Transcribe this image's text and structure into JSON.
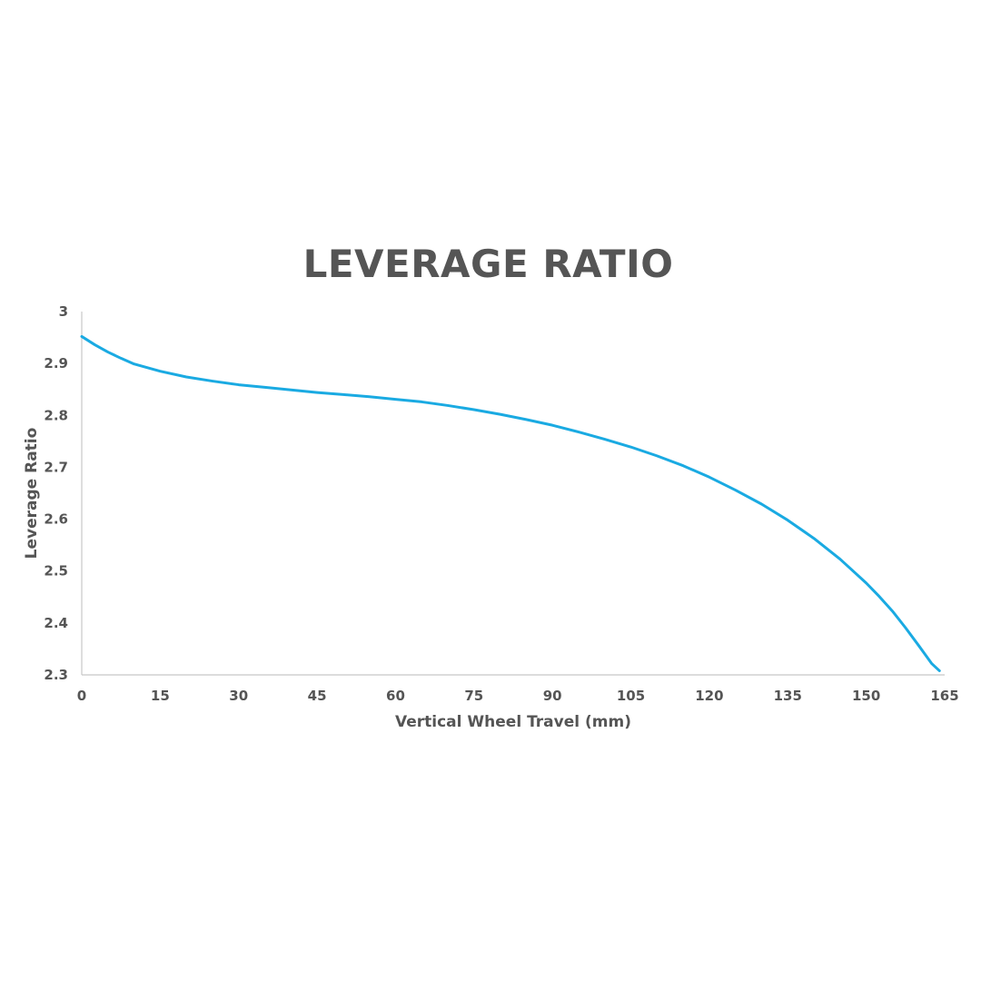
{
  "chart_data": {
    "type": "line",
    "title": "LEVERAGE RATIO",
    "xlabel": "Vertical Wheel Travel (mm)",
    "ylabel": "Leverage Ratio",
    "xlim": [
      0,
      165
    ],
    "ylim": [
      2.3,
      3.0
    ],
    "x_ticks": [
      "0",
      "15",
      "30",
      "45",
      "60",
      "75",
      "90",
      "105",
      "120",
      "135",
      "150",
      "165"
    ],
    "x_tick_values": [
      0,
      15,
      30,
      45,
      60,
      75,
      90,
      105,
      120,
      135,
      150,
      165
    ],
    "y_ticks": [
      "2.3",
      "2.4",
      "2.5",
      "2.6",
      "2.7",
      "2.8",
      "2.9",
      "3"
    ],
    "y_tick_values": [
      2.3,
      2.4,
      2.5,
      2.6,
      2.7,
      2.8,
      2.9,
      3.0
    ],
    "grid": false,
    "legend": "none",
    "line_color": "#1aaae2",
    "text_color": "#555555",
    "axis_color": "#c8c8c8",
    "series": [
      {
        "x": [
          0,
          2.5,
          5,
          7.5,
          10,
          15,
          20,
          25,
          30,
          35,
          40,
          45,
          50,
          55,
          60,
          65,
          70,
          75,
          80,
          85,
          90,
          95,
          100,
          105,
          110,
          115,
          120,
          125,
          130,
          135,
          140,
          145,
          150,
          152.5,
          155,
          157.5,
          160,
          162.5,
          164
        ],
        "values": [
          2.952,
          2.936,
          2.922,
          2.91,
          2.899,
          2.885,
          2.874,
          2.866,
          2.859,
          2.854,
          2.849,
          2.844,
          2.84,
          2.836,
          2.831,
          2.826,
          2.819,
          2.811,
          2.802,
          2.792,
          2.781,
          2.768,
          2.754,
          2.739,
          2.722,
          2.703,
          2.681,
          2.656,
          2.629,
          2.598,
          2.563,
          2.523,
          2.477,
          2.451,
          2.423,
          2.391,
          2.357,
          2.322,
          2.308
        ]
      }
    ]
  }
}
